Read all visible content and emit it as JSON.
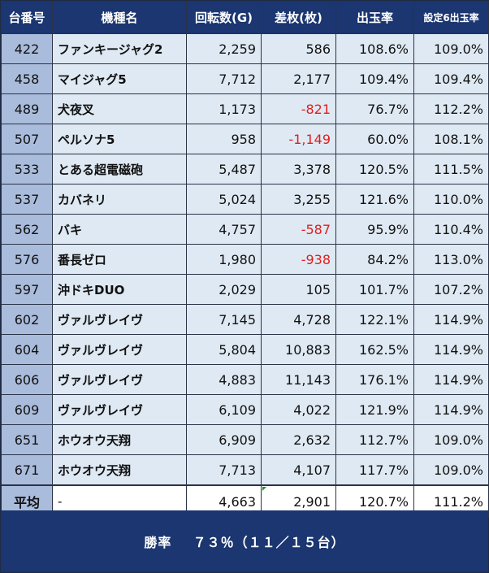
{
  "headers": [
    "台番号",
    "機種名",
    "回転数(G)",
    "差枚(枚)",
    "出玉率",
    "設定6出玉率"
  ],
  "rows": [
    {
      "id": "422",
      "name": "ファンキージャグ2",
      "spins": "2,259",
      "diff": "586",
      "rate": "108.6%",
      "rate6": "109.0%"
    },
    {
      "id": "458",
      "name": "マイジャグ5",
      "spins": "7,712",
      "diff": "2,177",
      "rate": "109.4%",
      "rate6": "109.4%"
    },
    {
      "id": "489",
      "name": "犬夜叉",
      "spins": "1,173",
      "diff": "-821",
      "rate": "76.7%",
      "rate6": "112.2%"
    },
    {
      "id": "507",
      "name": "ペルソナ5",
      "spins": "958",
      "diff": "-1,149",
      "rate": "60.0%",
      "rate6": "108.1%"
    },
    {
      "id": "533",
      "name": "とある超電磁砲",
      "spins": "5,487",
      "diff": "3,378",
      "rate": "120.5%",
      "rate6": "111.5%"
    },
    {
      "id": "537",
      "name": "カバネリ",
      "spins": "5,024",
      "diff": "3,255",
      "rate": "121.6%",
      "rate6": "110.0%"
    },
    {
      "id": "562",
      "name": "バキ",
      "spins": "4,757",
      "diff": "-587",
      "rate": "95.9%",
      "rate6": "110.4%"
    },
    {
      "id": "576",
      "name": "番長ゼロ",
      "spins": "1,980",
      "diff": "-938",
      "rate": "84.2%",
      "rate6": "113.0%"
    },
    {
      "id": "597",
      "name": "沖ドキDUO",
      "spins": "2,029",
      "diff": "105",
      "rate": "101.7%",
      "rate6": "107.2%"
    },
    {
      "id": "602",
      "name": "ヴァルヴレイヴ",
      "spins": "7,145",
      "diff": "4,728",
      "rate": "122.1%",
      "rate6": "114.9%"
    },
    {
      "id": "604",
      "name": "ヴァルヴレイヴ",
      "spins": "5,804",
      "diff": "10,883",
      "rate": "162.5%",
      "rate6": "114.9%"
    },
    {
      "id": "606",
      "name": "ヴァルヴレイヴ",
      "spins": "4,883",
      "diff": "11,143",
      "rate": "176.1%",
      "rate6": "114.9%"
    },
    {
      "id": "609",
      "name": "ヴァルヴレイヴ",
      "spins": "6,109",
      "diff": "4,022",
      "rate": "121.9%",
      "rate6": "114.9%"
    },
    {
      "id": "651",
      "name": "ホウオウ天翔",
      "spins": "6,909",
      "diff": "2,632",
      "rate": "112.7%",
      "rate6": "109.0%"
    },
    {
      "id": "671",
      "name": "ホウオウ天翔",
      "spins": "7,713",
      "diff": "4,107",
      "rate": "117.7%",
      "rate6": "109.0%"
    }
  ],
  "average": {
    "label": "平均",
    "name": "-",
    "spins": "4,663",
    "diff": "2,901",
    "rate": "120.7%",
    "rate6": "111.2%"
  },
  "footer": {
    "label": "勝率",
    "value": "７３％（１１／１５台）"
  },
  "colors": {
    "header_bg": "#1b3670",
    "row_bg": "#dfe9f3",
    "id_bg": "#aabcdc",
    "negative": "#e01e1e"
  }
}
